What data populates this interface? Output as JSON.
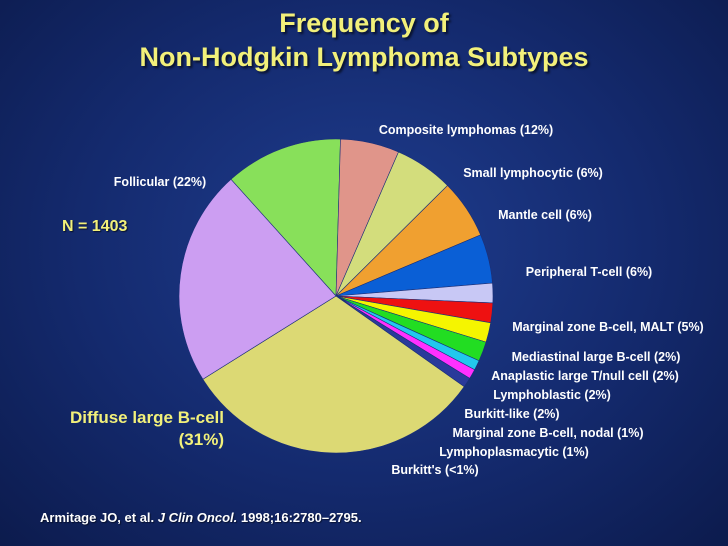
{
  "title": {
    "line1": "Frequency of",
    "line2": "Non-Hodgkin Lymphoma Subtypes"
  },
  "n_label": "N = 1403",
  "citation": {
    "authors": "Armitage JO, et al.",
    "journal": "J Clin Oncol.",
    "details": "1998;16:2780–2795",
    "end": "."
  },
  "chart_data": {
    "type": "pie",
    "title": "Frequency of Non-Hodgkin Lymphoma Subtypes",
    "slices": [
      {
        "label": "Composite lymphomas (12%)",
        "value": 12,
        "color": "#88e05a"
      },
      {
        "label": "Small lymphocytic (6%)",
        "value": 6,
        "color": "#e0958a"
      },
      {
        "label": "Mantle cell (6%)",
        "value": 6,
        "color": "#d3dd7c"
      },
      {
        "label": "Peripheral T-cell (6%)",
        "value": 6,
        "color": "#f0a030"
      },
      {
        "label": "Marginal zone B-cell, MALT (5%)",
        "value": 5,
        "color": "#0a5fd6"
      },
      {
        "label": "Mediastinal large B-cell (2%)",
        "value": 2,
        "color": "#c8c8f5"
      },
      {
        "label": "Anaplastic large T/null cell (2%)",
        "value": 2,
        "color": "#ee1111"
      },
      {
        "label": "Lymphoblastic (2%)",
        "value": 2,
        "color": "#f5f500"
      },
      {
        "label": "Burkitt-like (2%)",
        "value": 2,
        "color": "#22dd22"
      },
      {
        "label": "Marginal zone B-cell, nodal (1%)",
        "value": 1,
        "color": "#22c8ee"
      },
      {
        "label": "Lymphoplasmacytic (1%)",
        "value": 1,
        "color": "#ff30ff"
      },
      {
        "label": "Burkitt's (<1%)",
        "value": 1,
        "color": "#2a3a9a"
      },
      {
        "label": "Diffuse large B-cell (31%)",
        "value": 31,
        "color": "#dcd974"
      },
      {
        "label": "Follicular (22%)",
        "value": 22,
        "color": "#cc9ef2"
      }
    ]
  }
}
